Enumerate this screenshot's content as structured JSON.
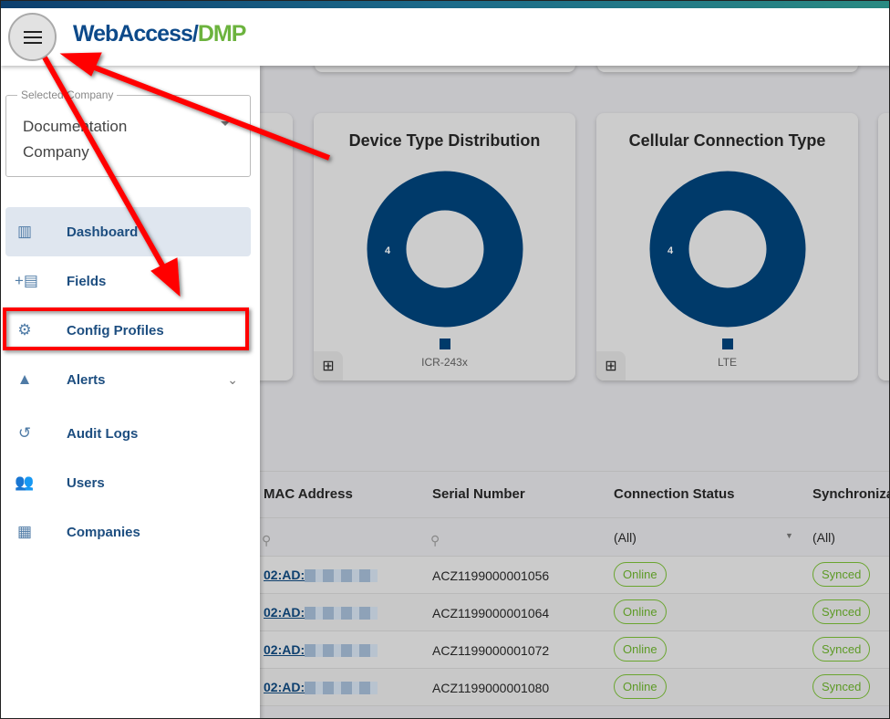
{
  "header": {
    "logo_part1": "WebAccess/",
    "logo_part2": "DMP",
    "menu_icon": "hamburger-icon"
  },
  "sidebar": {
    "company_label": "Selected Company",
    "company_value": "Documentation Company",
    "items": [
      {
        "label": "Dashboard",
        "icon": "bar-chart-icon",
        "active": true
      },
      {
        "label": "Fields",
        "icon": "fields-icon"
      },
      {
        "label": "Config Profiles",
        "icon": "gear-icon",
        "highlighted": true
      },
      {
        "label": "Alerts",
        "icon": "warning-icon",
        "expandable": true
      },
      {
        "label": "Audit Logs",
        "icon": "history-icon"
      },
      {
        "label": "Users",
        "icon": "users-icon"
      },
      {
        "label": "Companies",
        "icon": "building-icon"
      }
    ]
  },
  "cards": [
    {
      "title": "Device Type Distribution",
      "value": "4",
      "legend": "ICR-243x"
    },
    {
      "title": "Cellular Connection Type",
      "value": "4",
      "legend": "LTE"
    }
  ],
  "chart_data": [
    {
      "type": "pie",
      "title": "Device Type Distribution",
      "categories": [
        "ICR-243x"
      ],
      "values": [
        4
      ],
      "colors": [
        "#003a6a"
      ],
      "donut": true
    },
    {
      "type": "pie",
      "title": "Cellular Connection Type",
      "categories": [
        "LTE"
      ],
      "values": [
        4
      ],
      "colors": [
        "#003a6a"
      ],
      "donut": true
    }
  ],
  "table": {
    "columns": [
      "MAC Address",
      "Serial Number",
      "Connection Status",
      "Synchroniza"
    ],
    "filters": {
      "status": "(All)",
      "sync": "(All)"
    },
    "rows": [
      {
        "mac": "02:AD:",
        "serial": "ACZ1199000001056",
        "status": "Online",
        "sync": "Synced"
      },
      {
        "mac": "02:AD:",
        "serial": "ACZ1199000001064",
        "status": "Online",
        "sync": "Synced"
      },
      {
        "mac": "02:AD:",
        "serial": "ACZ1199000001072",
        "status": "Online",
        "sync": "Synced"
      },
      {
        "mac": "02:AD:",
        "serial": "ACZ1199000001080",
        "status": "Online",
        "sync": "Synced"
      }
    ]
  },
  "colors": {
    "brand_blue": "#0d4a8a",
    "brand_green": "#6cb33e",
    "chart": "#003a6a",
    "annotation": "#ff0000",
    "status_green": "#6aa52f"
  }
}
